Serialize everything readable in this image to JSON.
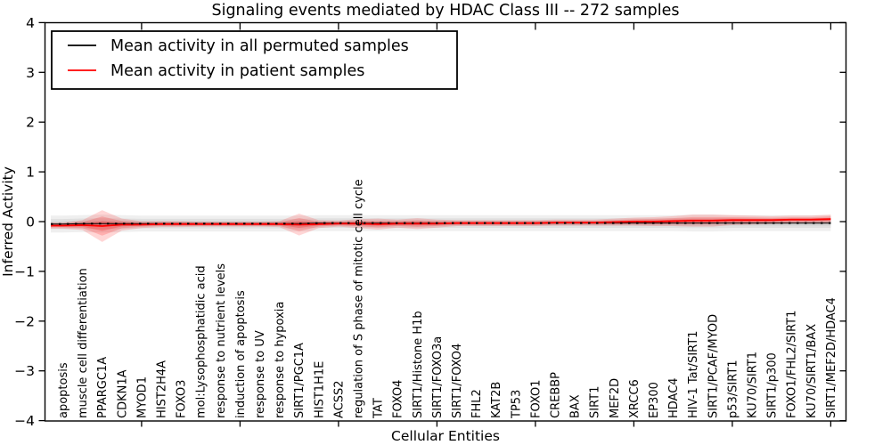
{
  "title": "Signaling events mediated by HDAC Class III -- 272 samples",
  "axes": {
    "ylabel": "Inferred Activity",
    "xlabel": "Cellular Entities",
    "yticks": [
      4,
      3,
      2,
      1,
      0,
      -1,
      -2,
      -3,
      -4
    ],
    "ylim": [
      -4,
      4
    ]
  },
  "legend": {
    "items": [
      {
        "label": "Mean activity in all permuted samples",
        "color": "#000000"
      },
      {
        "label": "Mean activity in patient samples",
        "color": "#ff0000"
      }
    ]
  },
  "chart_data": {
    "type": "line",
    "title": "Signaling events mediated by HDAC Class III -- 272 samples",
    "xlabel": "Cellular Entities",
    "ylabel": "Inferred Activity",
    "ylim": [
      -4,
      4
    ],
    "grid": false,
    "legend_position": "upper left",
    "categories": [
      "apoptosis",
      "muscle cell differentiation",
      "PPARGC1A",
      "CDKN1A",
      "MYOD1",
      "HIST2H4A",
      "FOXO3",
      "mol:Lysophosphatidic acid",
      "response to nutrient levels",
      "induction of apoptosis",
      "response to UV",
      "response to hypoxia",
      "SIRT1/PGC1A",
      "HIST1H1E",
      "ACSS2",
      "regulation of S phase of mitotic cell cycle",
      "TAT",
      "FOXO4",
      "SIRT1/Histone H1b",
      "SIRT1/FOXO3a",
      "SIRT1/FOXO4",
      "FHL2",
      "KAT2B",
      "TP53",
      "FOXO1",
      "CREBBP",
      "BAX",
      "SIRT1",
      "MEF2D",
      "XRCC6",
      "EP300",
      "HDAC4",
      "HIV-1 Tat/SIRT1",
      "SIRT1/PCAF/MYOD",
      "p53/SIRT1",
      "KU70/SIRT1",
      "SIRT1/p300",
      "FOXO1/FHL2/SIRT1",
      "KU70/SIRT1/BAX",
      "SIRT1/MEF2D/HDAC4"
    ],
    "x_major_tick_indices": [
      4,
      9,
      14,
      19,
      24,
      29,
      34,
      39
    ],
    "series": [
      {
        "name": "Mean activity in all permuted samples",
        "color": "#000000",
        "style": "dashed",
        "values": [
          -0.05,
          -0.04,
          -0.04,
          -0.04,
          -0.04,
          -0.04,
          -0.04,
          -0.04,
          -0.04,
          -0.04,
          -0.04,
          -0.04,
          -0.04,
          -0.03,
          -0.03,
          -0.03,
          -0.03,
          -0.03,
          -0.03,
          -0.03,
          -0.03,
          -0.03,
          -0.03,
          -0.03,
          -0.03,
          -0.03,
          -0.03,
          -0.03,
          -0.03,
          -0.03,
          -0.03,
          -0.03,
          -0.03,
          -0.03,
          -0.03,
          -0.03,
          -0.03,
          -0.03,
          -0.03,
          -0.03
        ]
      },
      {
        "name": "Mean activity in patient samples",
        "color": "#ff0000",
        "style": "solid",
        "values": [
          -0.08,
          -0.07,
          -0.09,
          -0.06,
          -0.06,
          -0.05,
          -0.05,
          -0.05,
          -0.05,
          -0.05,
          -0.05,
          -0.05,
          -0.06,
          -0.05,
          -0.04,
          -0.04,
          -0.05,
          -0.04,
          -0.04,
          -0.04,
          -0.03,
          -0.03,
          -0.03,
          -0.03,
          -0.03,
          -0.02,
          -0.02,
          -0.02,
          -0.01,
          0.0,
          0.0,
          0.01,
          0.02,
          0.02,
          0.03,
          0.03,
          0.03,
          0.04,
          0.04,
          0.05
        ]
      }
    ],
    "bands": [
      {
        "name": "permuted-samples-spread",
        "color": "#999999",
        "center_series": 0,
        "half_widths": [
          0.17,
          0.17,
          0.18,
          0.17,
          0.16,
          0.16,
          0.16,
          0.16,
          0.16,
          0.16,
          0.16,
          0.16,
          0.16,
          0.16,
          0.16,
          0.16,
          0.16,
          0.16,
          0.16,
          0.16,
          0.16,
          0.16,
          0.16,
          0.16,
          0.16,
          0.16,
          0.16,
          0.16,
          0.16,
          0.16,
          0.16,
          0.16,
          0.17,
          0.17,
          0.16,
          0.16,
          0.16,
          0.16,
          0.16,
          0.16
        ]
      },
      {
        "name": "patient-samples-spread",
        "color": "#ff0000",
        "center_series": 1,
        "half_widths": [
          0.06,
          0.1,
          0.32,
          0.12,
          0.07,
          0.06,
          0.06,
          0.05,
          0.05,
          0.05,
          0.05,
          0.06,
          0.22,
          0.08,
          0.06,
          0.09,
          0.11,
          0.08,
          0.11,
          0.08,
          0.06,
          0.06,
          0.06,
          0.06,
          0.06,
          0.06,
          0.06,
          0.06,
          0.07,
          0.08,
          0.09,
          0.1,
          0.12,
          0.12,
          0.1,
          0.09,
          0.08,
          0.08,
          0.08,
          0.09
        ]
      }
    ]
  }
}
